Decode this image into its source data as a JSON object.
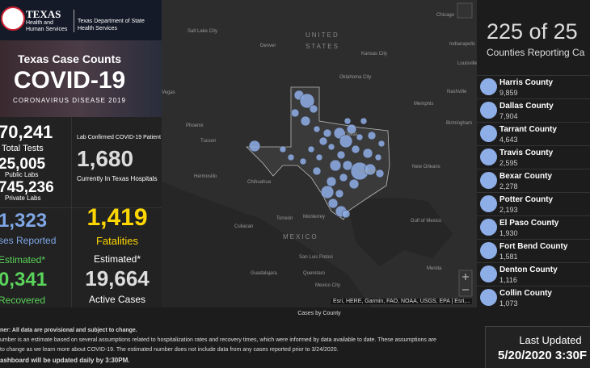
{
  "header": {
    "agency_short": "TEXAS",
    "agency_sub": "Health and Human Services",
    "department": "Texas Department of State Health Services"
  },
  "banner": {
    "title": "Texas Case Counts",
    "headline": "COVID-19",
    "subtitle": "CORONAVIRUS DISEASE 2019"
  },
  "stats_left": {
    "total_tests": "70,241",
    "total_tests_label": "Total Tests",
    "public_labs": "25,005",
    "public_labs_label": "Public Labs",
    "private_labs": "745,236",
    "private_labs_label": "Private Labs",
    "cases": "1,323",
    "cases_label": "ses Reported",
    "recovered_note": "Estimated*",
    "recovered": "0,341",
    "recovered_label": "Recovered"
  },
  "stats_right": {
    "hospital_note": "Lab Confirmed COVID-19 Patient",
    "hospitalized": "1,680",
    "hospitalized_label": "Currently In Texas Hospitals",
    "fatalities": "1,419",
    "fatalities_label": "Fatalities",
    "active_note": "Estimated*",
    "active": "19,664",
    "active_label": "Active Cases"
  },
  "map": {
    "labels": [
      "Salt Lake City",
      "Denver",
      "UNITED",
      "STATES",
      "Kansas City",
      "Chicago",
      "Indianapolis",
      "Louisville",
      "Vegas",
      "Nashville",
      "Oklahoma City",
      "Memphis",
      "Phoenix",
      "Tucson",
      "Birmingham",
      "Dallas",
      "Houston",
      "New Orleans",
      "Hermosillo",
      "Chihuahua",
      "Torreón",
      "Monterrey",
      "Culiacan",
      "MEXICO",
      "Gulf of Mexico",
      "San Luis Potosi",
      "Guadalajara",
      "Queretaro",
      "Mexico City",
      "Merida"
    ],
    "attribution": "Esri, HERE, Garmin, FAO, NOAA, USGS, EPA | Esri,...",
    "caption": "Cases by County"
  },
  "counties": {
    "count": "225 of 25",
    "label": "Counties Reporting Ca",
    "list": [
      {
        "name": "Harris County",
        "value": "9,859"
      },
      {
        "name": "Dallas County",
        "value": "7,904"
      },
      {
        "name": "Tarrant County",
        "value": "4,643"
      },
      {
        "name": "Travis County",
        "value": "2,595"
      },
      {
        "name": "Bexar County",
        "value": "2,278"
      },
      {
        "name": "Potter County",
        "value": "2,193"
      },
      {
        "name": "El Paso County",
        "value": "1,930"
      },
      {
        "name": "Fort Bend County",
        "value": "1,581"
      },
      {
        "name": "Denton County",
        "value": "1,116"
      },
      {
        "name": "Collin County",
        "value": "1,073"
      }
    ]
  },
  "disclaimer": [
    "ner: All data are provisional and subject to change.",
    "umber is an estimate based on several assumptions related to hospitalization rates and recovery times, which were informed by data available to date. These assumptions are",
    "to change as we learn more about COVID-19. The estimated number does not include data from any cases reported prior to 3/24/2020.",
    "ashboard will be updated daily by 3:30PM."
  ],
  "updated": {
    "label": "Last Updated",
    "value": "5/20/2020 3:30F"
  }
}
